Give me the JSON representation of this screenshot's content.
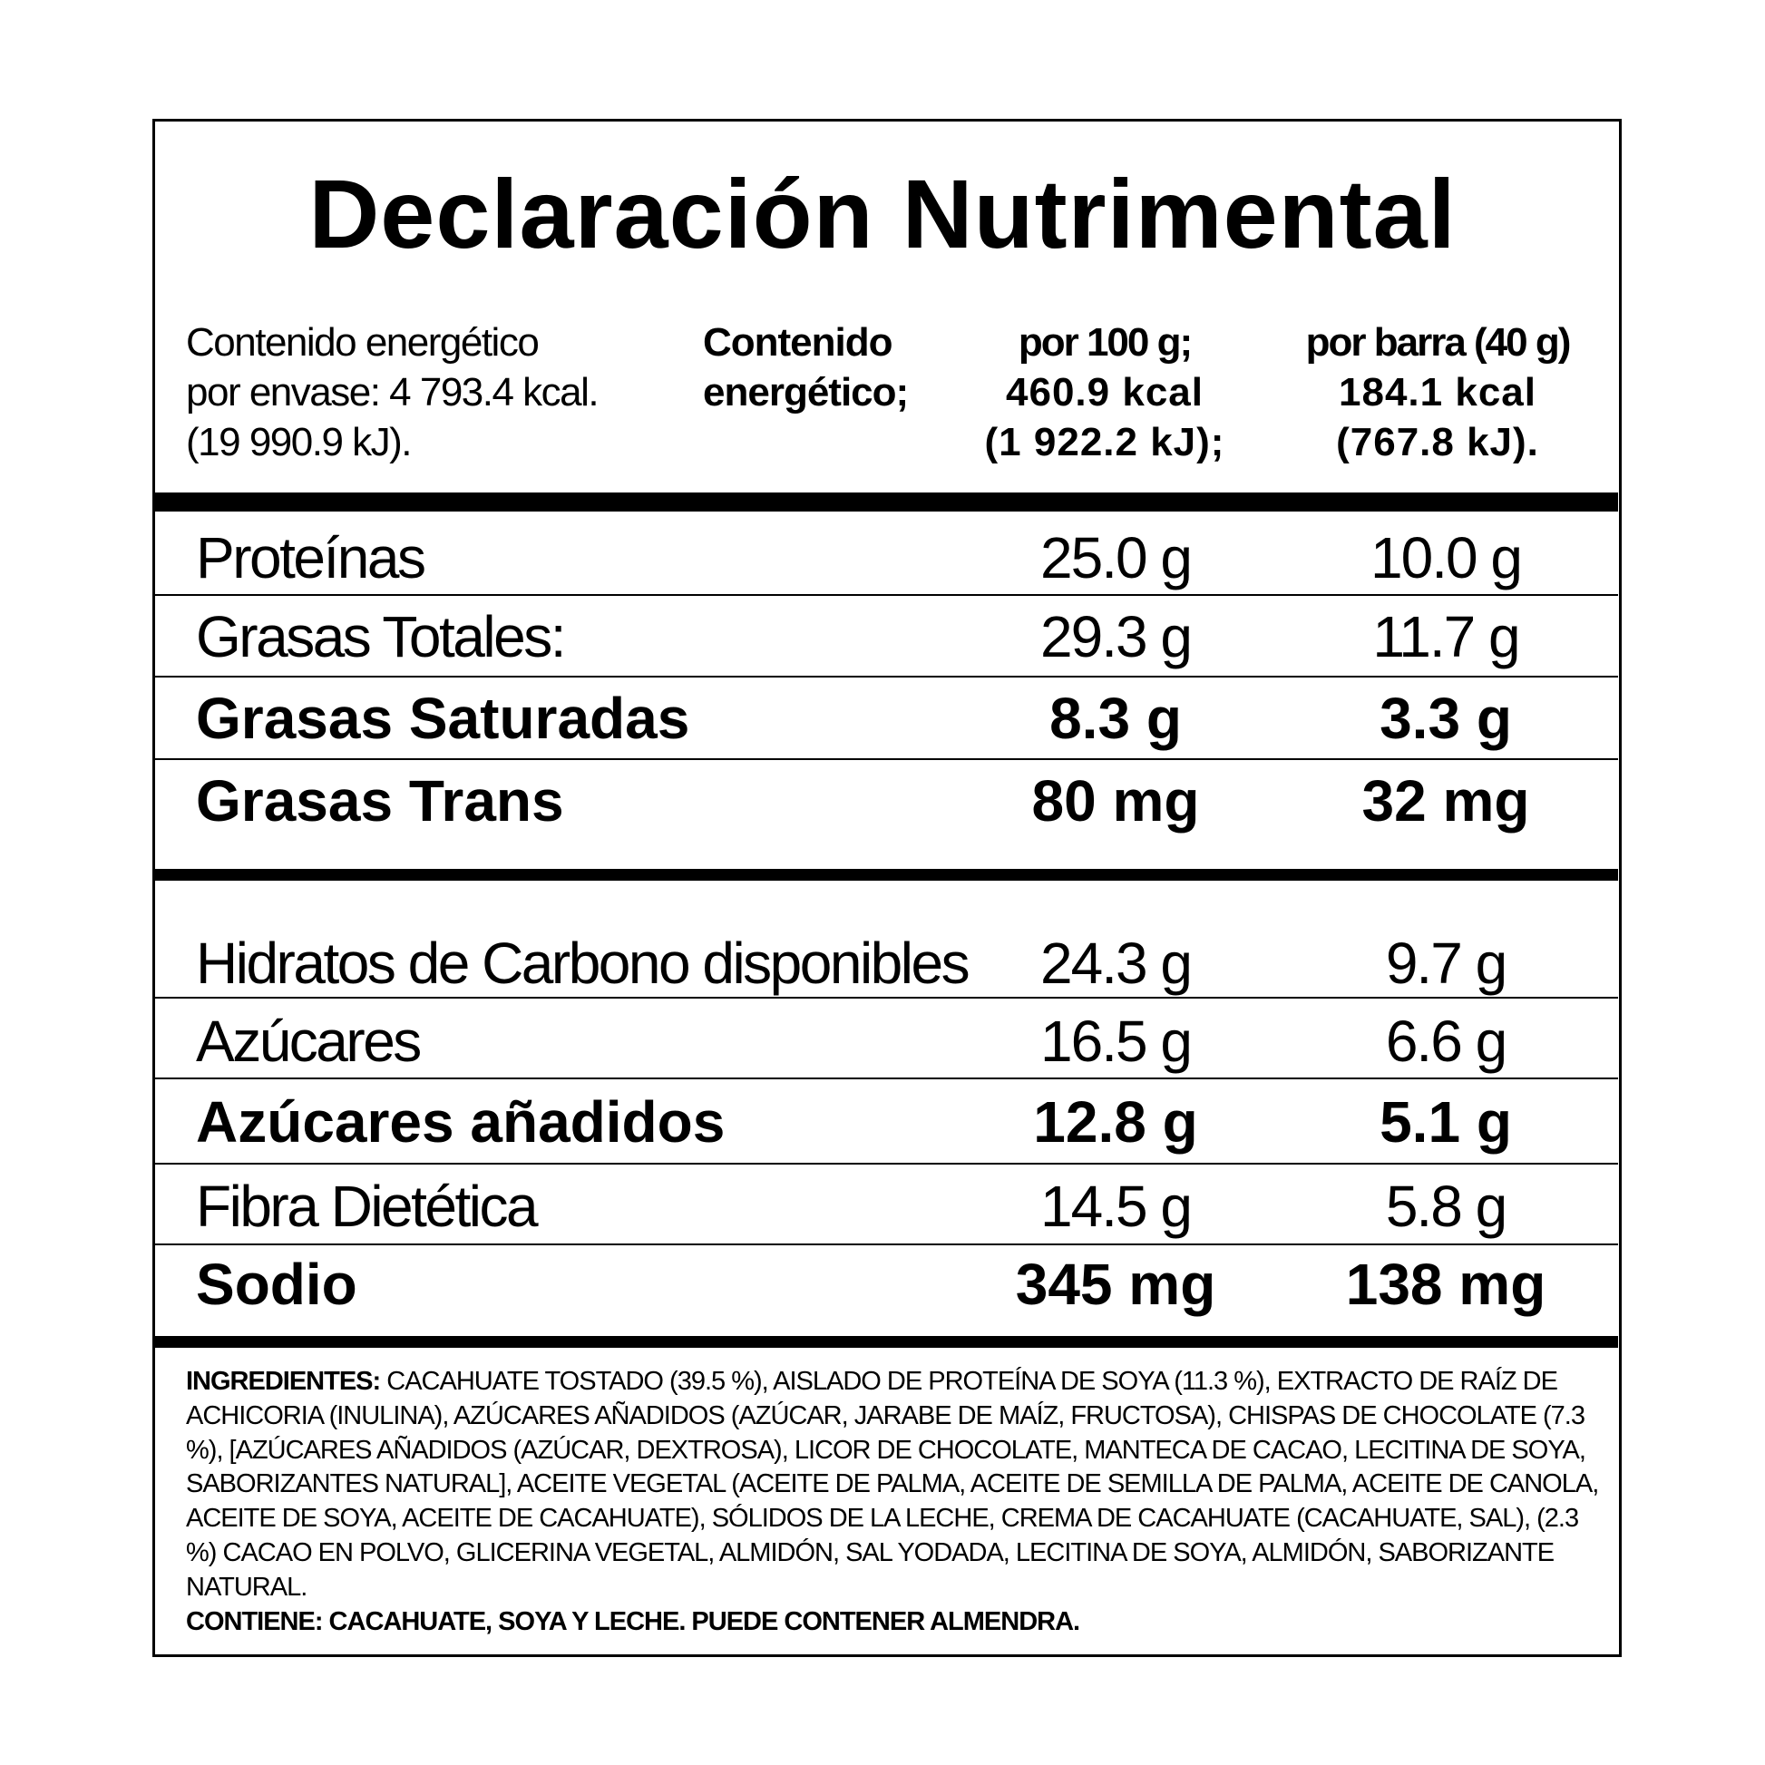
{
  "title": "Declaración Nutrimental",
  "header": {
    "package_energy": [
      "Contenido energético",
      "por envase: 4 793.4 kcal.",
      "(19 990.9 kJ)."
    ],
    "energy_label": [
      "Contenido",
      "energético;"
    ],
    "per100": [
      "por 100 g;",
      "460.9 kcal",
      "(1 922.2 kJ);"
    ],
    "perbar": [
      "por barra (40 g)",
      "184.1 kcal",
      "(767.8 kJ)."
    ]
  },
  "nutrients": [
    {
      "label": "Proteínas",
      "per100": "25.0 g",
      "perbar": "10.0 g",
      "bold": false
    },
    {
      "label": "Grasas Totales:",
      "per100": "29.3 g",
      "perbar": "11.7 g",
      "bold": false
    },
    {
      "label": "Grasas Saturadas",
      "per100": "8.3 g",
      "perbar": "3.3 g",
      "bold": true
    },
    {
      "label": "Grasas Trans",
      "per100": "80 mg",
      "perbar": "32 mg",
      "bold": true
    },
    {
      "label": "Hidratos de Carbono disponibles",
      "per100": "24.3 g",
      "perbar": "9.7 g",
      "bold": false
    },
    {
      "label": "Azúcares",
      "per100": "16.5 g",
      "perbar": "6.6 g",
      "bold": false
    },
    {
      "label": "Azúcares añadidos",
      "per100": "12.8 g",
      "perbar": "5.1 g",
      "bold": true
    },
    {
      "label": "Fibra Dietética",
      "per100": "14.5 g",
      "perbar": "5.8 g",
      "bold": false
    },
    {
      "label": "Sodio",
      "per100": "345 mg",
      "perbar": "138 mg",
      "bold": true
    }
  ],
  "ingredients": {
    "label": "INGREDIENTES:",
    "text": " CACAHUATE TOSTADO (39.5 %), AISLADO DE PROTEÍNA DE SOYA (11.3 %), EXTRACTO DE RAÍZ DE ACHICORIA (INULINA), AZÚCARES AÑADIDOS (AZÚCAR, JARABE DE MAÍZ, FRUCTOSA), CHISPAS DE CHOCOLATE (7.3 %), [AZÚCARES AÑADIDOS (AZÚCAR, DEXTROSA), LICOR DE CHOCOLATE, MANTECA DE CACAO, LECITINA DE SOYA, SABORIZANTES NATURAL], ACEITE VEGETAL (ACEITE DE PALMA, ACEITE DE SEMILLA DE PALMA, ACEITE DE CANOLA, ACEITE DE SOYA, ACEITE DE CACAHUATE), SÓLIDOS DE LA LECHE, CREMA DE CACAHUATE (CACAHUATE, SAL), (2.3 %) CACAO EN POLVO, GLICERINA VEGETAL, ALMIDÓN, SAL YODADA, LECITINA DE SOYA, ALMIDÓN, SABORIZANTE NATURAL.",
    "contains": "CONTIENE: CACAHUATE, SOYA Y LECHE. PUEDE CONTENER ALMENDRA."
  }
}
